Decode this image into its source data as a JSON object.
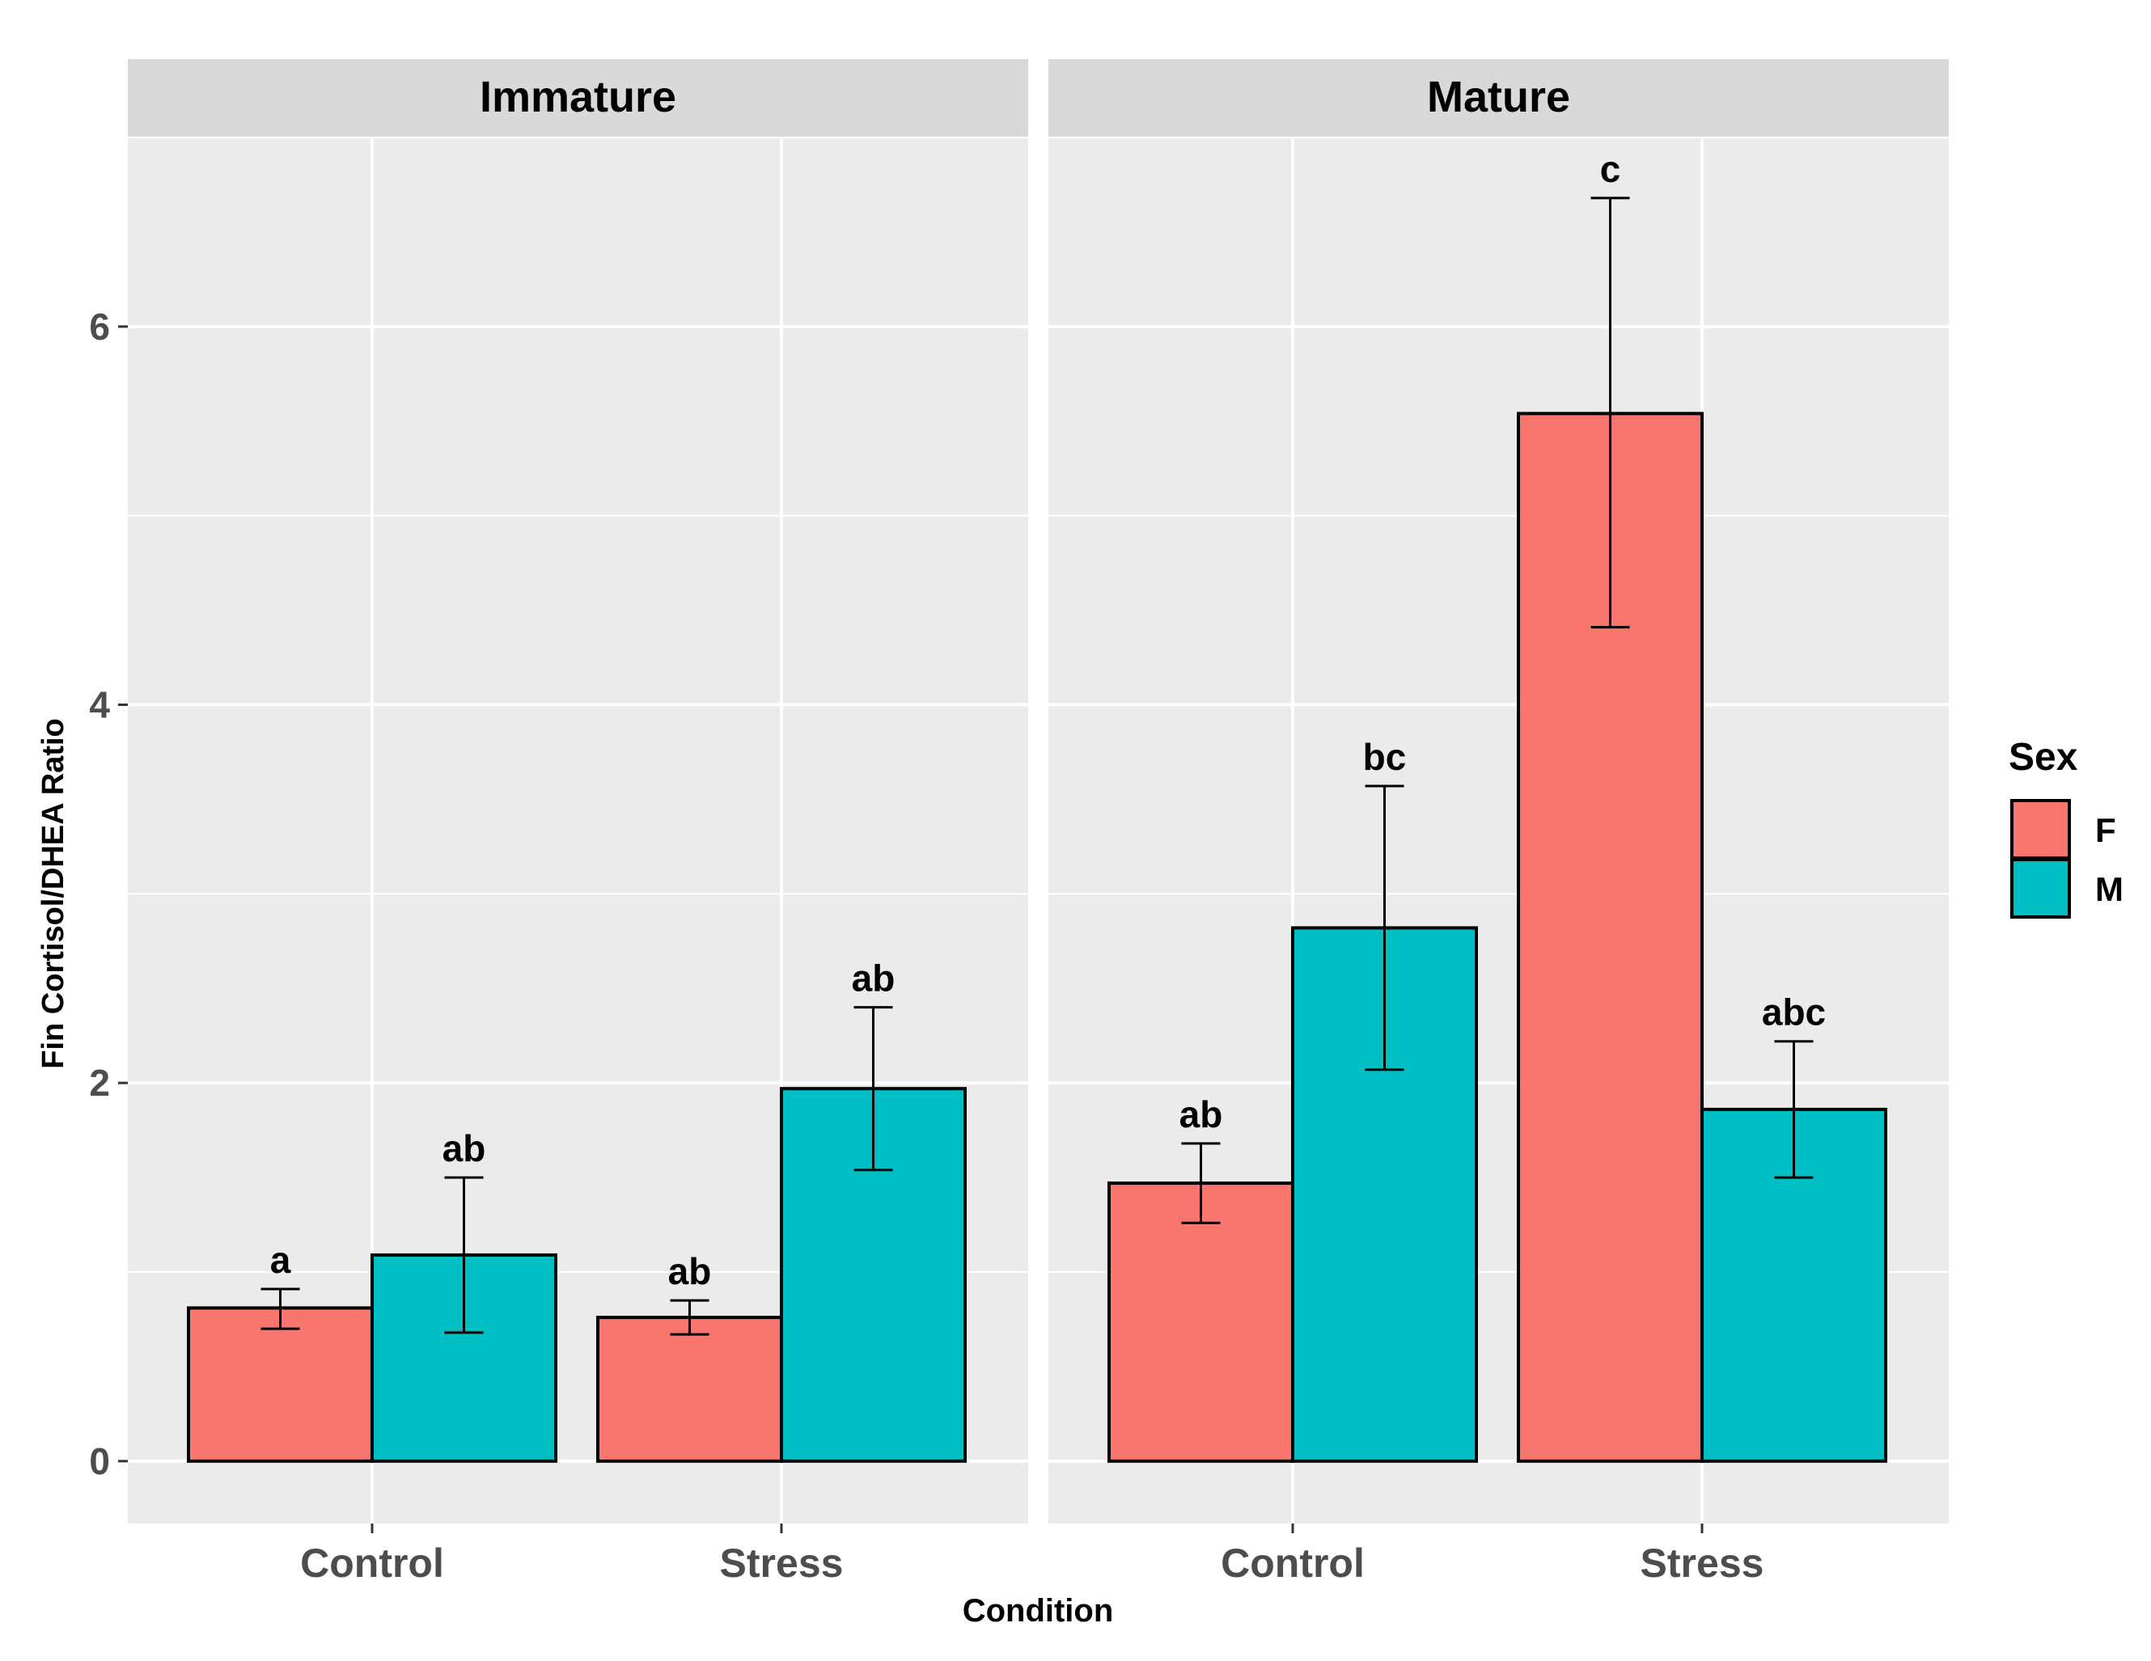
{
  "chart_data": {
    "type": "bar",
    "y_label": "Fin Cortisol/DHEA Ratio",
    "x_label": "Condition",
    "y_ticks": [
      "0",
      "2",
      "4",
      "6"
    ],
    "y_tick_values": [
      0,
      2,
      4,
      6
    ],
    "ylim": [
      -0.33,
      7.0
    ],
    "categories": [
      "Control",
      "Stress"
    ],
    "legend": {
      "title": "Sex",
      "placement": "right",
      "items": [
        {
          "label": "F",
          "color": "#F8766D"
        },
        {
          "label": "M",
          "color": "#00BFC4"
        }
      ]
    },
    "panels": [
      {
        "title": "Immature",
        "groups": [
          {
            "category": "Control",
            "bars": [
              {
                "sex": "F",
                "value": 0.81,
                "err_low": 0.7,
                "err_high": 0.91,
                "label": "a"
              },
              {
                "sex": "M",
                "value": 1.09,
                "err_low": 0.68,
                "err_high": 1.5,
                "label": "ab"
              }
            ]
          },
          {
            "category": "Stress",
            "bars": [
              {
                "sex": "F",
                "value": 0.76,
                "err_low": 0.67,
                "err_high": 0.85,
                "label": "ab"
              },
              {
                "sex": "M",
                "value": 1.97,
                "err_low": 1.54,
                "err_high": 2.4,
                "label": "ab"
              }
            ]
          }
        ]
      },
      {
        "title": "Mature",
        "groups": [
          {
            "category": "Control",
            "bars": [
              {
                "sex": "F",
                "value": 1.47,
                "err_low": 1.26,
                "err_high": 1.68,
                "label": "ab"
              },
              {
                "sex": "M",
                "value": 2.82,
                "err_low": 2.07,
                "err_high": 3.57,
                "label": "bc"
              }
            ]
          },
          {
            "category": "Stress",
            "bars": [
              {
                "sex": "F",
                "value": 5.54,
                "err_low": 4.41,
                "err_high": 6.68,
                "label": "c"
              },
              {
                "sex": "M",
                "value": 1.86,
                "err_low": 1.5,
                "err_high": 2.22,
                "label": "abc"
              }
            ]
          }
        ]
      }
    ],
    "colors": {
      "panel_bg": "#EBEBEB",
      "strip_bg": "#D9D9D9",
      "grid": "#FFFFFF",
      "text": "#000000",
      "tick_text": "#4D4D4D"
    }
  }
}
